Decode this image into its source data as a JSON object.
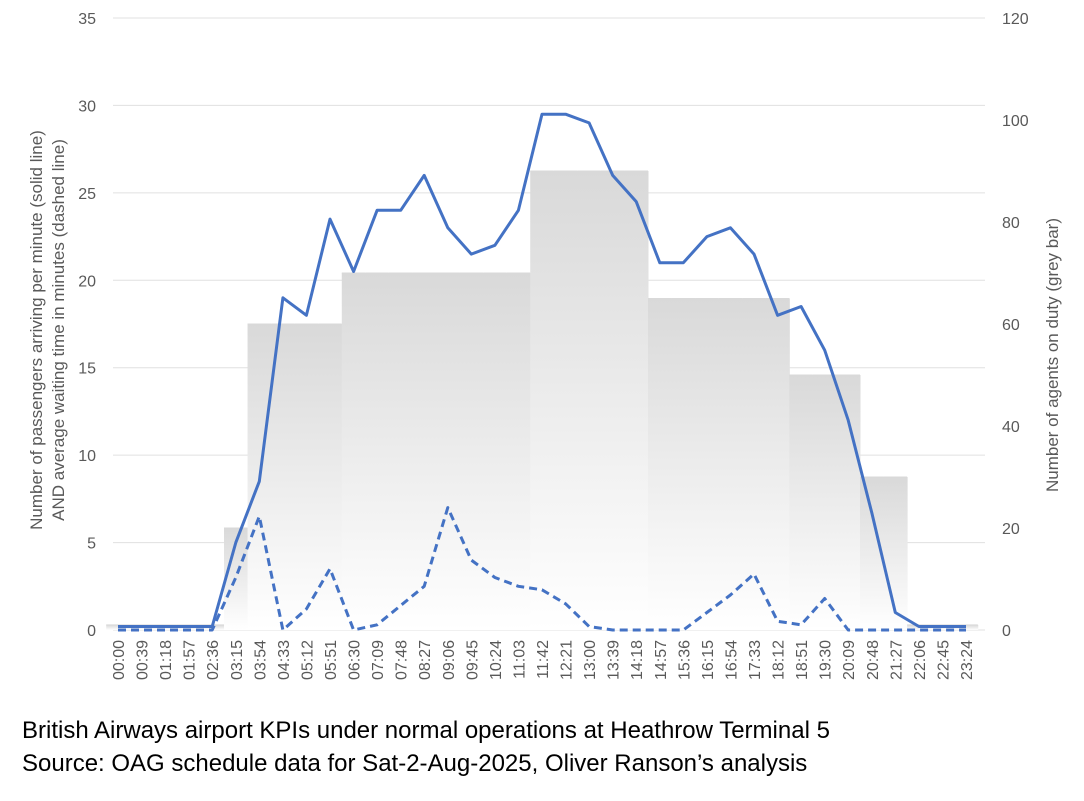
{
  "chart_data": {
    "type": "line",
    "ylabel": [
      "Number of passengers arriving per minute (solid line)",
      "AND average waiting time in minutes (dashed line)"
    ],
    "y2label": "Number of agents on duty  (grey bar)",
    "caption": [
      "British Airways airport KPIs under normal operations at Heathrow Terminal 5",
      "Source: OAG schedule data for Sat-2-Aug-2025, Oliver Ranson’s analysis"
    ],
    "categories": [
      "00:00",
      "00:39",
      "01:18",
      "01:57",
      "02:36",
      "03:15",
      "03:54",
      "04:33",
      "05:12",
      "05:51",
      "06:30",
      "07:09",
      "07:48",
      "08:27",
      "09:06",
      "09:45",
      "10:24",
      "11:03",
      "11:42",
      "12:21",
      "13:00",
      "13:39",
      "14:18",
      "14:57",
      "15:36",
      "16:15",
      "16:54",
      "17:33",
      "18:12",
      "18:51",
      "19:30",
      "20:09",
      "20:48",
      "21:27",
      "22:06",
      "22:45",
      "23:24"
    ],
    "series": [
      {
        "type": "bar",
        "axis": "y2",
        "color": "#d9d9d9",
        "values": [
          1,
          1,
          1,
          1,
          1,
          20,
          60,
          60,
          60,
          60,
          70,
          70,
          70,
          70,
          70,
          70,
          70,
          70,
          90,
          90,
          90,
          90,
          90,
          65,
          65,
          65,
          65,
          65,
          65,
          50,
          50,
          50,
          30,
          30,
          1,
          1,
          1
        ]
      },
      {
        "type": "line",
        "color": "#4472c4",
        "dashed": false,
        "values": [
          0.2,
          0.2,
          0.2,
          0.2,
          0.2,
          5,
          8.5,
          19,
          18,
          23.5,
          20.5,
          24,
          24,
          26,
          23,
          21.5,
          22,
          24,
          29.5,
          29.5,
          29,
          26,
          24.5,
          21,
          21,
          22.5,
          23,
          21.5,
          18,
          18.5,
          16,
          12,
          6.7,
          1,
          0.2,
          0.2,
          0.2
        ]
      },
      {
        "type": "line",
        "color": "#4472c4",
        "dashed": true,
        "values": [
          0,
          0,
          0,
          0,
          0,
          3,
          6.5,
          0,
          1.2,
          3.5,
          0,
          0.3,
          1.4,
          2.5,
          7,
          4,
          3,
          2.5,
          2.3,
          1.5,
          0.2,
          0,
          0,
          0,
          0,
          1,
          2,
          3.2,
          0.5,
          0.3,
          1.8,
          0,
          0,
          0,
          0,
          0,
          0
        ]
      }
    ],
    "ylim": [
      0,
      35
    ],
    "yticks": [
      0,
      5,
      10,
      15,
      20,
      25,
      30,
      35
    ],
    "y2lim": [
      0,
      120
    ],
    "y2ticks": [
      0,
      20,
      40,
      60,
      80,
      100,
      120
    ],
    "grid": true
  }
}
